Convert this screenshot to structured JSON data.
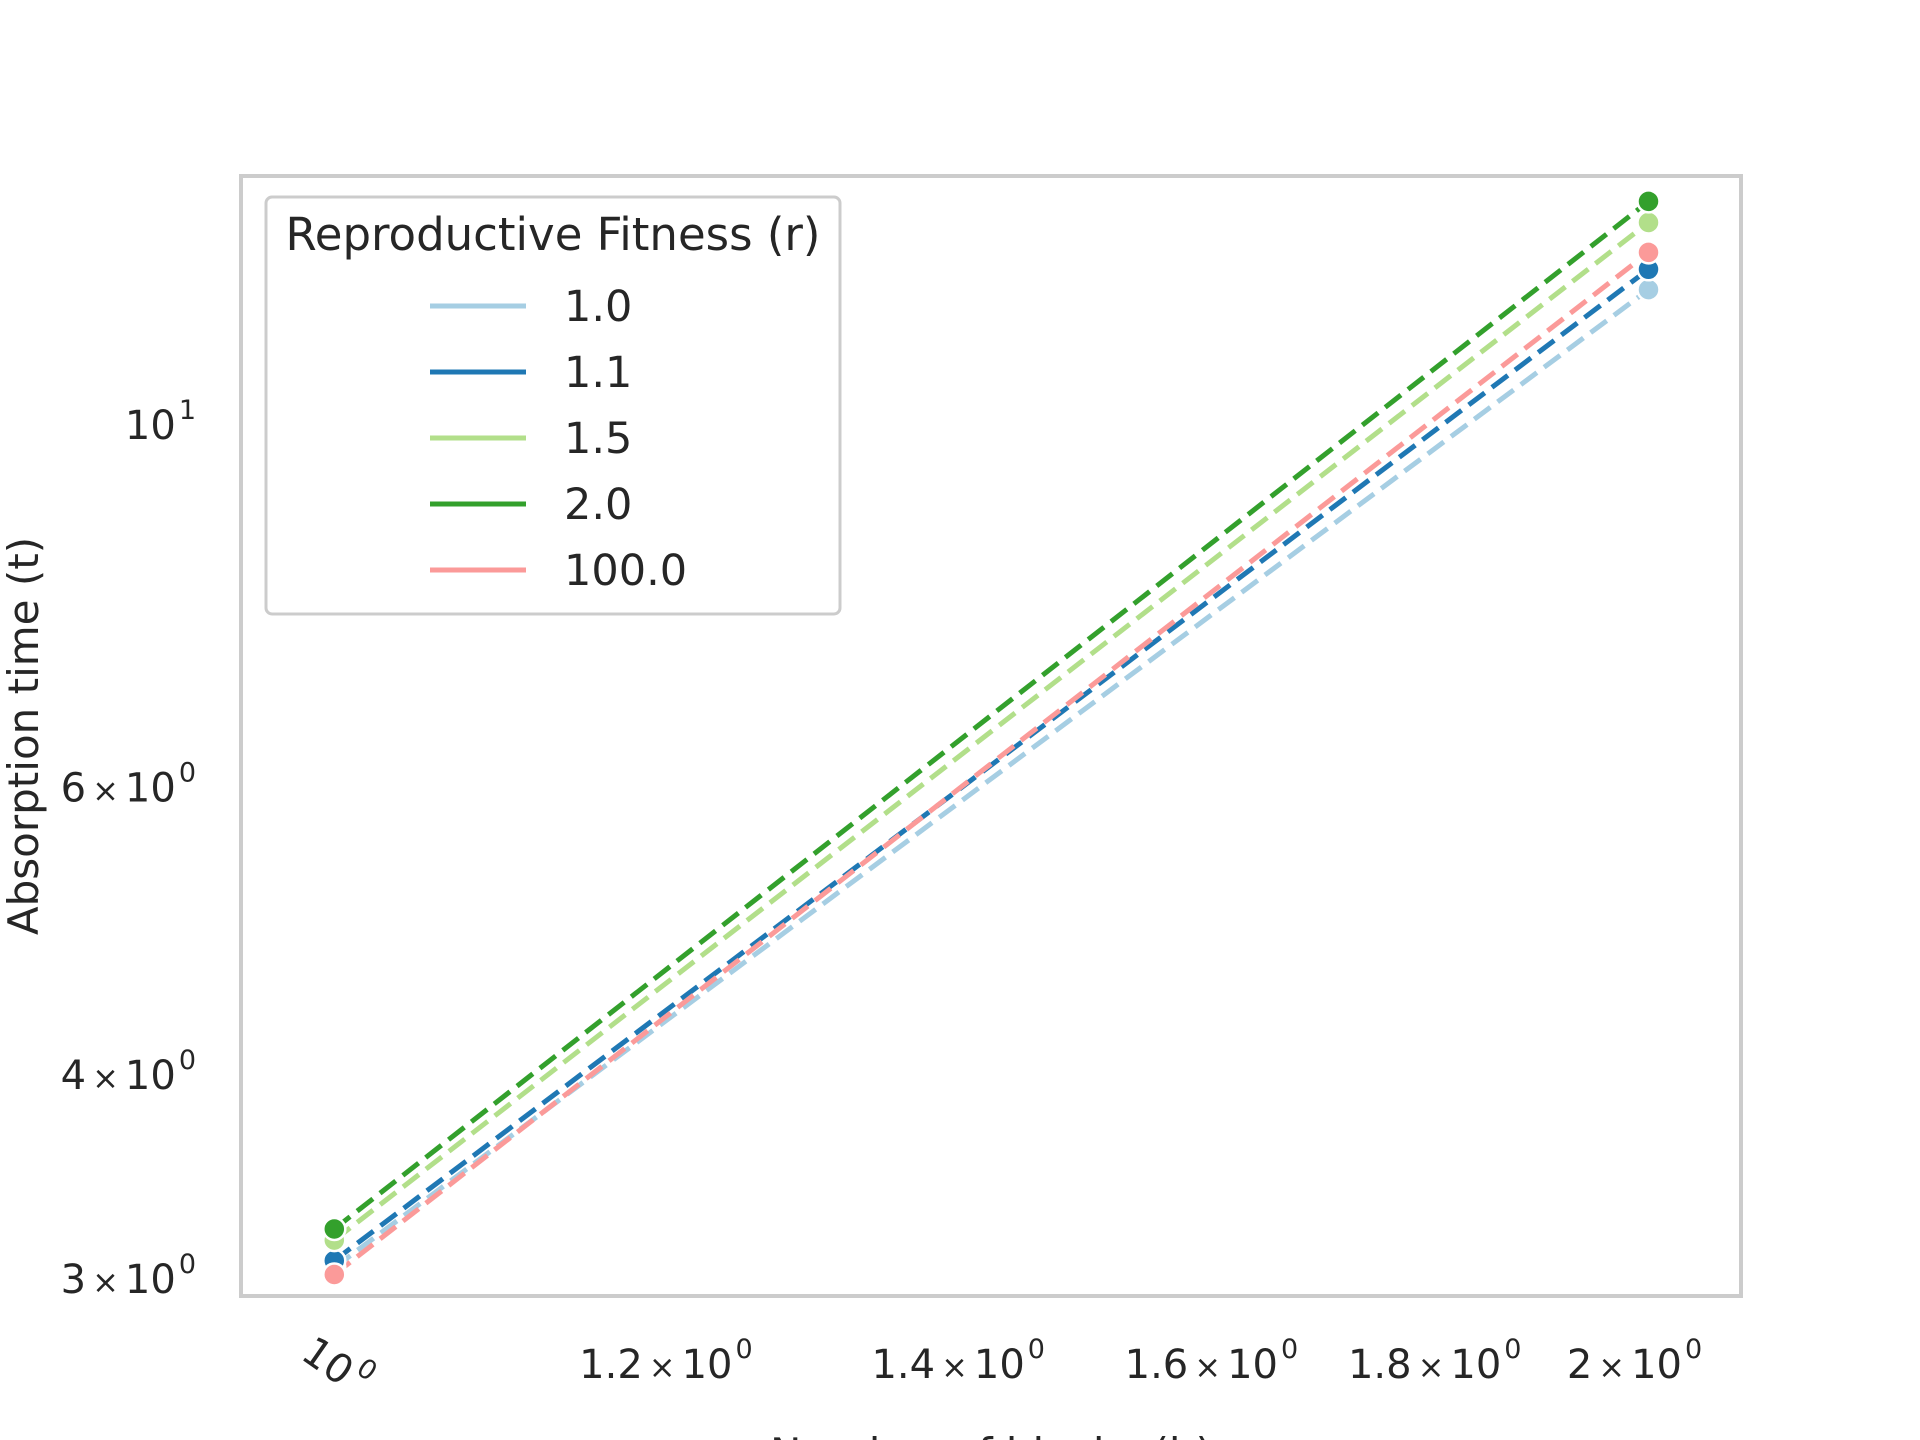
{
  "chart_data": {
    "type": "line",
    "title": "",
    "xlabel": "Number of blocks (b)",
    "ylabel": "Absorption time (t)",
    "xscale": "log",
    "yscale": "log",
    "xlim": [
      0.952,
      2.1
    ],
    "ylim": [
      2.93,
      14.2
    ],
    "grid": false,
    "line_style": "dashed",
    "markers": "circle",
    "x": [
      1,
      2
    ],
    "x_ticks": [
      {
        "value": 1.0,
        "mantissa": "",
        "base": "10",
        "exp": "0",
        "rotated": true
      },
      {
        "value": 1.2,
        "mantissa": "1.2",
        "base": "10",
        "exp": "0"
      },
      {
        "value": 1.4,
        "mantissa": "1.4",
        "base": "10",
        "exp": "0"
      },
      {
        "value": 1.6,
        "mantissa": "1.6",
        "base": "10",
        "exp": "0"
      },
      {
        "value": 1.8,
        "mantissa": "1.8",
        "base": "10",
        "exp": "0"
      },
      {
        "value": 2.0,
        "mantissa": "2",
        "base": "10",
        "exp": "0"
      }
    ],
    "y_ticks": [
      {
        "value": 3,
        "mantissa": "3",
        "base": "10",
        "exp": "0"
      },
      {
        "value": 4,
        "mantissa": "4",
        "base": "10",
        "exp": "0"
      },
      {
        "value": 6,
        "mantissa": "6",
        "base": "10",
        "exp": "0"
      },
      {
        "value": 10,
        "mantissa": "",
        "base": "10",
        "exp": "1"
      }
    ],
    "times_sign": "×",
    "legend": {
      "title": "Reproductive Fitness (r)",
      "placement": "upper-left"
    },
    "series": [
      {
        "name": "1.0",
        "color": "#a6cee3",
        "values": [
          3.05,
          12.1
        ]
      },
      {
        "name": "1.1",
        "color": "#1f78b4",
        "values": [
          3.08,
          12.45
        ]
      },
      {
        "name": "1.5",
        "color": "#b2df8a",
        "values": [
          3.17,
          13.3
        ]
      },
      {
        "name": "2.0",
        "color": "#33a02c",
        "values": [
          3.22,
          13.7
        ]
      },
      {
        "name": "100.0",
        "color": "#fb9a99",
        "values": [
          3.02,
          12.75
        ]
      }
    ]
  }
}
